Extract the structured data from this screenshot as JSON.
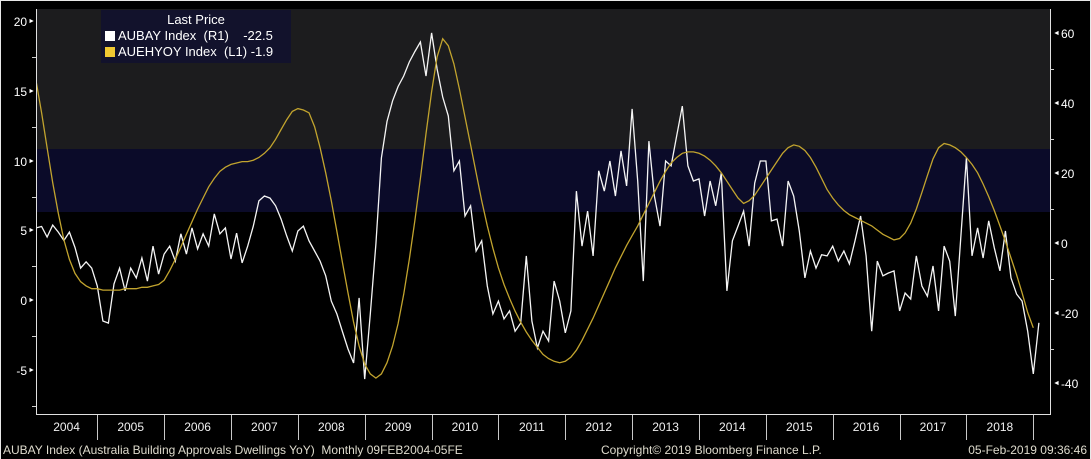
{
  "legend": {
    "title": "Last Price",
    "items": [
      {
        "swatch_color": "#ffffff",
        "text": "AUBAY Index  (R1)    -22.5"
      },
      {
        "swatch_color": "#f0c832",
        "text": "AUEHYOY Index  (L1) -1.9"
      }
    ]
  },
  "footer": {
    "left": "AUBAY Index (Australia Building Approvals Dwellings YoY)  Monthly 09FEB2004-05FE",
    "copyright": "Copyright© 2019 Bloomberg Finance L.P.",
    "datetime": "05-Feb-2019 09:36:46"
  },
  "colors": {
    "background": "#000000",
    "band_gray": "#1c1c1e",
    "band_navy": "#0b0b29",
    "series_white": "#f5f5f5",
    "series_yellow": "#c2a42e",
    "legend_bg": "#12122c",
    "axis_text": "#ffffff",
    "footer_text": "#dedbcd",
    "frame": "#e8e8e8"
  },
  "chart_data": {
    "type": "line",
    "title": "Last Price",
    "frequency": "Monthly",
    "x_range_label": "09FEB2004-05FE",
    "x_tick_labels": [
      "2004",
      "2005",
      "2006",
      "2007",
      "2008",
      "2009",
      "2010",
      "2011",
      "2012",
      "2013",
      "2014",
      "2015",
      "2016",
      "2017",
      "2018"
    ],
    "left_axis": {
      "ticks": [
        20,
        15,
        10,
        5,
        0,
        -5
      ],
      "minor_ticks": [
        17.5,
        12.5,
        7.5,
        2.5,
        -2.5,
        -7.5
      ],
      "ylim": [
        -8.07,
        20.93
      ]
    },
    "right_axis": {
      "ticks": [
        60,
        40,
        20,
        0,
        -20,
        -40
      ],
      "minor_ticks": [
        50,
        30,
        10,
        -10,
        -30
      ],
      "ylim": [
        -48.57,
        67.14
      ]
    },
    "bands": [
      {
        "axis": "left",
        "from": 10.9,
        "to": 21.0,
        "color": "#1c1c1e"
      },
      {
        "axis": "left",
        "from": 6.4,
        "to": 10.9,
        "color": "#0b0b29"
      }
    ],
    "series": [
      {
        "name": "AUBAY Index",
        "axis": "right",
        "color": "#f5f5f5",
        "last_value": -22.5,
        "start": "2004-02",
        "values": [
          4.6,
          5.0,
          2.0,
          5.4,
          3.4,
          1.0,
          3.4,
          -1.0,
          -6.9,
          -5.1,
          -6.9,
          -12.0,
          -22.0,
          -22.6,
          -11.4,
          -6.9,
          -13.4,
          -6.9,
          -9.7,
          -4.0,
          -10.6,
          -0.6,
          -8.6,
          -2.9,
          -0.6,
          -4.9,
          2.9,
          -2.9,
          4.6,
          -1.4,
          2.9,
          -0.6,
          8.6,
          2.9,
          4.6,
          -4.3,
          3.1,
          -5.4,
          -0.6,
          5.1,
          12.3,
          13.7,
          13.1,
          10.9,
          7.1,
          2.3,
          -2.0,
          3.7,
          5.1,
          0.9,
          -2.0,
          -4.9,
          -9.1,
          -16.3,
          -20.0,
          -25.0,
          -30.0,
          -34.0,
          -15.4,
          -38.6,
          -20.0,
          0.0,
          24.6,
          35.0,
          40.9,
          45.0,
          48.0,
          52.0,
          55.0,
          57.7,
          48.0,
          60.3,
          50.0,
          42.0,
          36.6,
          20.9,
          23.7,
          8.0,
          10.9,
          -2.0,
          0.9,
          -12.0,
          -20.0,
          -16.3,
          -21.4,
          -19.1,
          -24.9,
          -22.6,
          -3.4,
          -22.0,
          -29.7,
          -24.9,
          -27.7,
          -10.6,
          -16.3,
          -25.4,
          -19.1,
          15.1,
          -0.6,
          9.4,
          -3.4,
          20.9,
          15.1,
          23.7,
          13.7,
          26.6,
          16.6,
          38.6,
          18.0,
          -10.6,
          29.4,
          13.7,
          5.1,
          23.7,
          22.3,
          30.9,
          39.4,
          22.3,
          18.0,
          18.6,
          8.0,
          18.0,
          10.9,
          20.3,
          -13.4,
          0.9,
          5.1,
          9.4,
          -0.6,
          17.4,
          23.7,
          23.7,
          6.6,
          7.1,
          -0.6,
          18.0,
          13.7,
          3.7,
          -9.7,
          -2.0,
          -6.9,
          -3.1,
          -3.4,
          -0.6,
          -4.9,
          -2.0,
          -5.7,
          0.9,
          8.0,
          -3.4,
          -24.9,
          -4.9,
          -9.1,
          -8.3,
          -7.7,
          -19.1,
          -14.0,
          -15.7,
          -3.4,
          -12.0,
          -14.9,
          -6.3,
          -19.1,
          -0.6,
          -4.9,
          -20.6,
          2.3,
          24.6,
          -3.4,
          4.6,
          -4.0,
          6.6,
          -1.1,
          -7.7,
          3.7,
          -9.7,
          -14.3,
          -16.3,
          -24.9,
          -37.1,
          -22.5
        ]
      },
      {
        "name": "AUEHYOY Index",
        "axis": "left",
        "color": "#c2a42e",
        "last_value": -1.9,
        "start": "2004-02",
        "values": [
          15.8,
          13.5,
          11.0,
          8.5,
          6.3,
          4.4,
          3.0,
          2.0,
          1.4,
          1.1,
          0.9,
          0.9,
          0.8,
          0.8,
          0.8,
          0.8,
          0.9,
          0.9,
          0.9,
          1.0,
          1.0,
          1.1,
          1.2,
          1.5,
          2.2,
          3.0,
          3.9,
          4.8,
          5.7,
          6.6,
          7.4,
          8.2,
          8.8,
          9.3,
          9.6,
          9.8,
          9.9,
          10.0,
          10.0,
          10.1,
          10.3,
          10.6,
          11.0,
          11.6,
          12.3,
          13.0,
          13.6,
          13.8,
          13.7,
          13.5,
          12.5,
          11.0,
          9.2,
          7.2,
          5.0,
          2.8,
          0.6,
          -1.5,
          -3.2,
          -4.5,
          -5.2,
          -5.5,
          -5.2,
          -4.4,
          -3.2,
          -1.6,
          0.5,
          3.0,
          5.8,
          8.8,
          12.0,
          15.0,
          17.5,
          18.8,
          18.3,
          17.0,
          15.2,
          13.2,
          11.2,
          9.2,
          7.2,
          5.4,
          3.8,
          2.4,
          1.2,
          0.2,
          -0.7,
          -1.5,
          -2.2,
          -2.8,
          -3.3,
          -3.8,
          -4.1,
          -4.3,
          -4.4,
          -4.3,
          -4.0,
          -3.5,
          -2.8,
          -2.0,
          -1.2,
          -0.3,
          0.6,
          1.5,
          2.4,
          3.2,
          4.0,
          4.7,
          5.4,
          6.2,
          7.0,
          7.8,
          8.6,
          9.3,
          9.9,
          10.3,
          10.6,
          10.7,
          10.7,
          10.6,
          10.4,
          10.1,
          9.7,
          9.2,
          8.6,
          8.0,
          7.4,
          7.0,
          7.2,
          7.6,
          8.2,
          8.8,
          9.4,
          10.0,
          10.6,
          11.0,
          11.2,
          11.1,
          10.8,
          10.3,
          9.6,
          8.8,
          8.0,
          7.4,
          6.9,
          6.5,
          6.2,
          6.0,
          5.8,
          5.6,
          5.4,
          5.1,
          4.8,
          4.6,
          4.4,
          4.5,
          4.9,
          5.6,
          6.6,
          7.8,
          9.0,
          10.2,
          11.0,
          11.3,
          11.2,
          11.0,
          10.7,
          10.3,
          9.8,
          9.2,
          8.4,
          7.5,
          6.5,
          5.4,
          4.3,
          3.1,
          1.9,
          0.6,
          -0.8,
          -1.9
        ]
      }
    ]
  }
}
